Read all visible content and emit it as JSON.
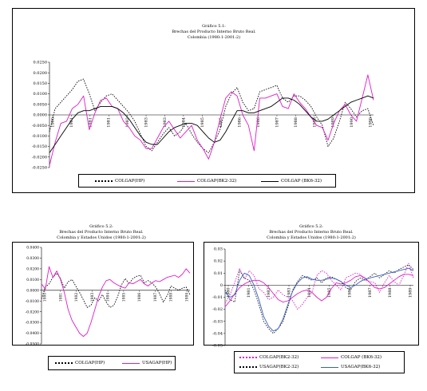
{
  "chart_data": [
    {
      "type": "line",
      "title": "Gráfico 5.1:",
      "subtitle": "Brechas del Producto Interno Bruto Real.",
      "subtitle2": "Colombia (1980:1-2001:2)",
      "ylim": [
        -0.025,
        0.025
      ],
      "yticks": [
        0.025,
        0.02,
        0.015,
        0.01,
        0.005,
        0.0,
        -0.005,
        -0.01,
        -0.015,
        -0.02,
        -0.025
      ],
      "ytick_labels": [
        "0.0250",
        "0.0200",
        "0.0150",
        "0.0100",
        "0.0050",
        "0.0000",
        "-0.0050",
        "-0.0100",
        "-0.0150",
        "-0.0200",
        "-0.0250"
      ],
      "xtick_labels": [
        "1980",
        "1981",
        "1981",
        "1981",
        "1982",
        "1983",
        "1983",
        "1984",
        "1985",
        "1985",
        "1986",
        "1986",
        "1987",
        "1988",
        "1988",
        "1989",
        "1990",
        "1990"
      ],
      "series": [
        {
          "name": "COLGAP(HP)",
          "color": "#000000",
          "dash": "1.5,1.5",
          "values": [
            -0.008,
            0.003,
            0.006,
            0.009,
            0.012,
            0.016,
            0.017,
            0.01,
            0.002,
            0.006,
            0.009,
            0.01,
            0.007,
            0.004,
            0.001,
            -0.003,
            -0.009,
            -0.015,
            -0.017,
            -0.013,
            -0.009,
            -0.006,
            -0.01,
            -0.008,
            -0.004,
            -0.009,
            -0.013,
            -0.016,
            -0.018,
            -0.013,
            -0.007,
            0.004,
            0.01,
            0.013,
            0.006,
            0.002,
            0.003,
            0.011,
            0.012,
            0.013,
            0.014,
            0.008,
            0.006,
            0.009,
            0.009,
            0.007,
            0.004,
            -0.001,
            -0.005,
            -0.015,
            -0.011,
            -0.003,
            0.006,
            0.003,
            -0.001,
            0.002,
            0.003,
            -0.005
          ]
        },
        {
          "name": "COLGAP(BK2-32)",
          "color": "#e01cc8",
          "dash": "",
          "values": [
            -0.024,
            -0.013,
            -0.004,
            -0.003,
            0.003,
            0.005,
            0.009,
            -0.007,
            0.001,
            0.007,
            0.008,
            0.004,
            0.003,
            -0.003,
            -0.006,
            -0.01,
            -0.012,
            -0.016,
            -0.016,
            -0.011,
            -0.006,
            -0.003,
            -0.007,
            -0.011,
            -0.008,
            -0.005,
            -0.012,
            -0.016,
            -0.021,
            -0.013,
            -0.002,
            0.008,
            0.011,
            0.009,
            0.0,
            -0.005,
            -0.017,
            0.008,
            0.008,
            0.009,
            0.01,
            0.004,
            0.003,
            0.01,
            0.006,
            0.003,
            -0.001,
            -0.005,
            -0.006,
            -0.012,
            -0.004,
            0.002,
            0.005,
            0.0,
            -0.003,
            0.008,
            0.019,
            0.007
          ]
        },
        {
          "name": "COLGAP (BK6-32)",
          "color": "#000000",
          "dash": "",
          "values": [
            -0.018,
            -0.014,
            -0.01,
            -0.006,
            -0.002,
            0.001,
            0.002,
            0.002,
            0.003,
            0.004,
            0.004,
            0.004,
            0.003,
            0.001,
            -0.002,
            -0.006,
            -0.01,
            -0.013,
            -0.014,
            -0.014,
            -0.011,
            -0.008,
            -0.006,
            -0.005,
            -0.004,
            -0.004,
            -0.005,
            -0.008,
            -0.011,
            -0.013,
            -0.012,
            -0.008,
            -0.003,
            0.002,
            0.002,
            0.001,
            0.001,
            0.002,
            0.003,
            0.004,
            0.006,
            0.008,
            0.008,
            0.007,
            0.005,
            0.002,
            -0.001,
            -0.003,
            -0.003,
            -0.002,
            0.0,
            0.002,
            0.004,
            0.006,
            0.007,
            0.008,
            0.009,
            0.008
          ]
        }
      ]
    },
    {
      "type": "line",
      "title": "Gráfico 5.2:",
      "subtitle": "Brechas del Producto Interno Bruto Real.",
      "subtitle2": "Colombia y Estados Unidos (1980:1-2001:2)",
      "ylim": [
        -0.05,
        0.04
      ],
      "yticks": [
        0.04,
        0.03,
        0.02,
        0.01,
        0.0,
        -0.01,
        -0.02,
        -0.03,
        -0.04,
        -0.05
      ],
      "ytick_labels": [
        "0.0400",
        "0.0300",
        "0.0200",
        "0.0100",
        "0.0000",
        "-0.0100",
        "-0.0200",
        "-0.0300",
        "-0.0400",
        "-0.0500"
      ],
      "xtick_labels": [
        "1980",
        "1981",
        "1982",
        "1983",
        "1984",
        "1985",
        "1986",
        "1987",
        "1988",
        "1989"
      ],
      "series": [
        {
          "name": "COLGAP(HP)",
          "color": "#000000",
          "dash": "1.5,1.5",
          "values": [
            -0.008,
            0.003,
            0.006,
            0.012,
            0.016,
            0.011,
            0.002,
            0.008,
            0.01,
            0.004,
            -0.002,
            -0.009,
            -0.016,
            -0.014,
            -0.007,
            -0.01,
            -0.004,
            -0.011,
            -0.016,
            -0.014,
            -0.006,
            0.005,
            0.011,
            0.006,
            0.011,
            0.013,
            0.014,
            0.007,
            0.009,
            0.007,
            0.003,
            -0.003,
            -0.011,
            -0.005,
            0.004,
            0.002,
            0.0,
            0.002,
            0.003,
            -0.004
          ]
        },
        {
          "name": "USAGAP(HP)",
          "color": "#e01cc8",
          "dash": "",
          "values": [
            0.006,
            0.001,
            0.022,
            0.012,
            0.018,
            0.01,
            -0.002,
            -0.018,
            -0.028,
            -0.034,
            -0.04,
            -0.043,
            -0.04,
            -0.03,
            -0.018,
            -0.006,
            0.003,
            0.009,
            0.01,
            0.007,
            0.005,
            0.003,
            0.002,
            0.007,
            0.006,
            0.008,
            0.01,
            0.006,
            0.004,
            0.007,
            0.009,
            0.008,
            0.01,
            0.012,
            0.013,
            0.014,
            0.012,
            0.015,
            0.02,
            0.016
          ]
        }
      ]
    },
    {
      "type": "line",
      "title": "Gráfico 5.2:",
      "subtitle": "Brechas del Producto Interno Bruto Real.",
      "subtitle2": "Colombia y Estados Unidos (1980:1-2001:2)",
      "ylim": [
        -0.05,
        0.03
      ],
      "yticks": [
        0.03,
        0.02,
        0.01,
        0.0,
        -0.01,
        -0.02,
        -0.03,
        -0.04,
        -0.05
      ],
      "ytick_labels": [
        "0.03",
        "0.02",
        "0.01",
        "0",
        "-0.01",
        "-0.02",
        "-0.03",
        "-0.04",
        "-0.05"
      ],
      "xtick_labels": [
        "1980",
        "1981",
        "1982",
        "1983",
        "1984",
        "1985",
        "1986",
        "1987",
        "1988",
        "1989"
      ],
      "series": [
        {
          "name": "COLGAP(BK2-32)",
          "color": "#e01cc8",
          "dash": "1.5,1.5",
          "values": [
            -0.015,
            -0.008,
            0.002,
            0.014,
            0.005,
            0.012,
            0.008,
            -0.003,
            -0.006,
            -0.012,
            -0.01,
            -0.004,
            -0.008,
            -0.01,
            -0.013,
            -0.02,
            -0.016,
            -0.01,
            -0.006,
            0.008,
            0.012,
            0.01,
            0.004,
            0.0,
            -0.004,
            0.006,
            0.008,
            0.01,
            0.009,
            0.004,
            0.003,
            0.002,
            -0.006,
            0.002,
            0.008,
            0.003,
            0.0,
            0.008,
            0.018,
            0.006
          ]
        },
        {
          "name": "COLGAP (BK6-32)",
          "color": "#e01cc8",
          "dash": "",
          "values": [
            -0.018,
            -0.013,
            -0.007,
            -0.002,
            0.001,
            0.003,
            0.004,
            0.004,
            0.002,
            -0.002,
            -0.007,
            -0.012,
            -0.014,
            -0.013,
            -0.01,
            -0.007,
            -0.005,
            -0.004,
            -0.006,
            -0.01,
            -0.013,
            -0.01,
            -0.003,
            0.002,
            0.001,
            0.002,
            0.004,
            0.007,
            0.008,
            0.006,
            0.002,
            -0.002,
            -0.003,
            -0.002,
            0.001,
            0.004,
            0.007,
            0.009,
            0.009,
            0.008
          ]
        },
        {
          "name": "USAGAP(BK2-32)",
          "color": "#1a1a1a",
          "dash": "1.5,1.5",
          "values": [
            -0.004,
            -0.012,
            -0.014,
            0.012,
            0.006,
            0.004,
            -0.004,
            -0.016,
            -0.03,
            -0.036,
            -0.04,
            -0.036,
            -0.03,
            -0.018,
            -0.004,
            0.003,
            0.008,
            0.006,
            0.004,
            0.006,
            0.002,
            0.006,
            0.007,
            0.005,
            0.003,
            -0.002,
            -0.004,
            0.003,
            0.006,
            0.004,
            0.007,
            0.01,
            0.006,
            0.009,
            0.012,
            0.01,
            0.013,
            0.015,
            0.017,
            0.013
          ]
        },
        {
          "name": "USAGAP(BK6-32)",
          "color": "#3a5fc0",
          "dash": "",
          "values": [
            -0.006,
            -0.01,
            -0.008,
            0.004,
            0.01,
            0.008,
            0.0,
            -0.012,
            -0.026,
            -0.034,
            -0.038,
            -0.036,
            -0.028,
            -0.016,
            -0.005,
            0.002,
            0.006,
            0.007,
            0.005,
            0.004,
            0.004,
            0.005,
            0.006,
            0.005,
            0.003,
            0.0,
            -0.002,
            0.0,
            0.003,
            0.005,
            0.006,
            0.007,
            0.008,
            0.009,
            0.01,
            0.011,
            0.012,
            0.013,
            0.014,
            0.012
          ]
        }
      ]
    }
  ]
}
